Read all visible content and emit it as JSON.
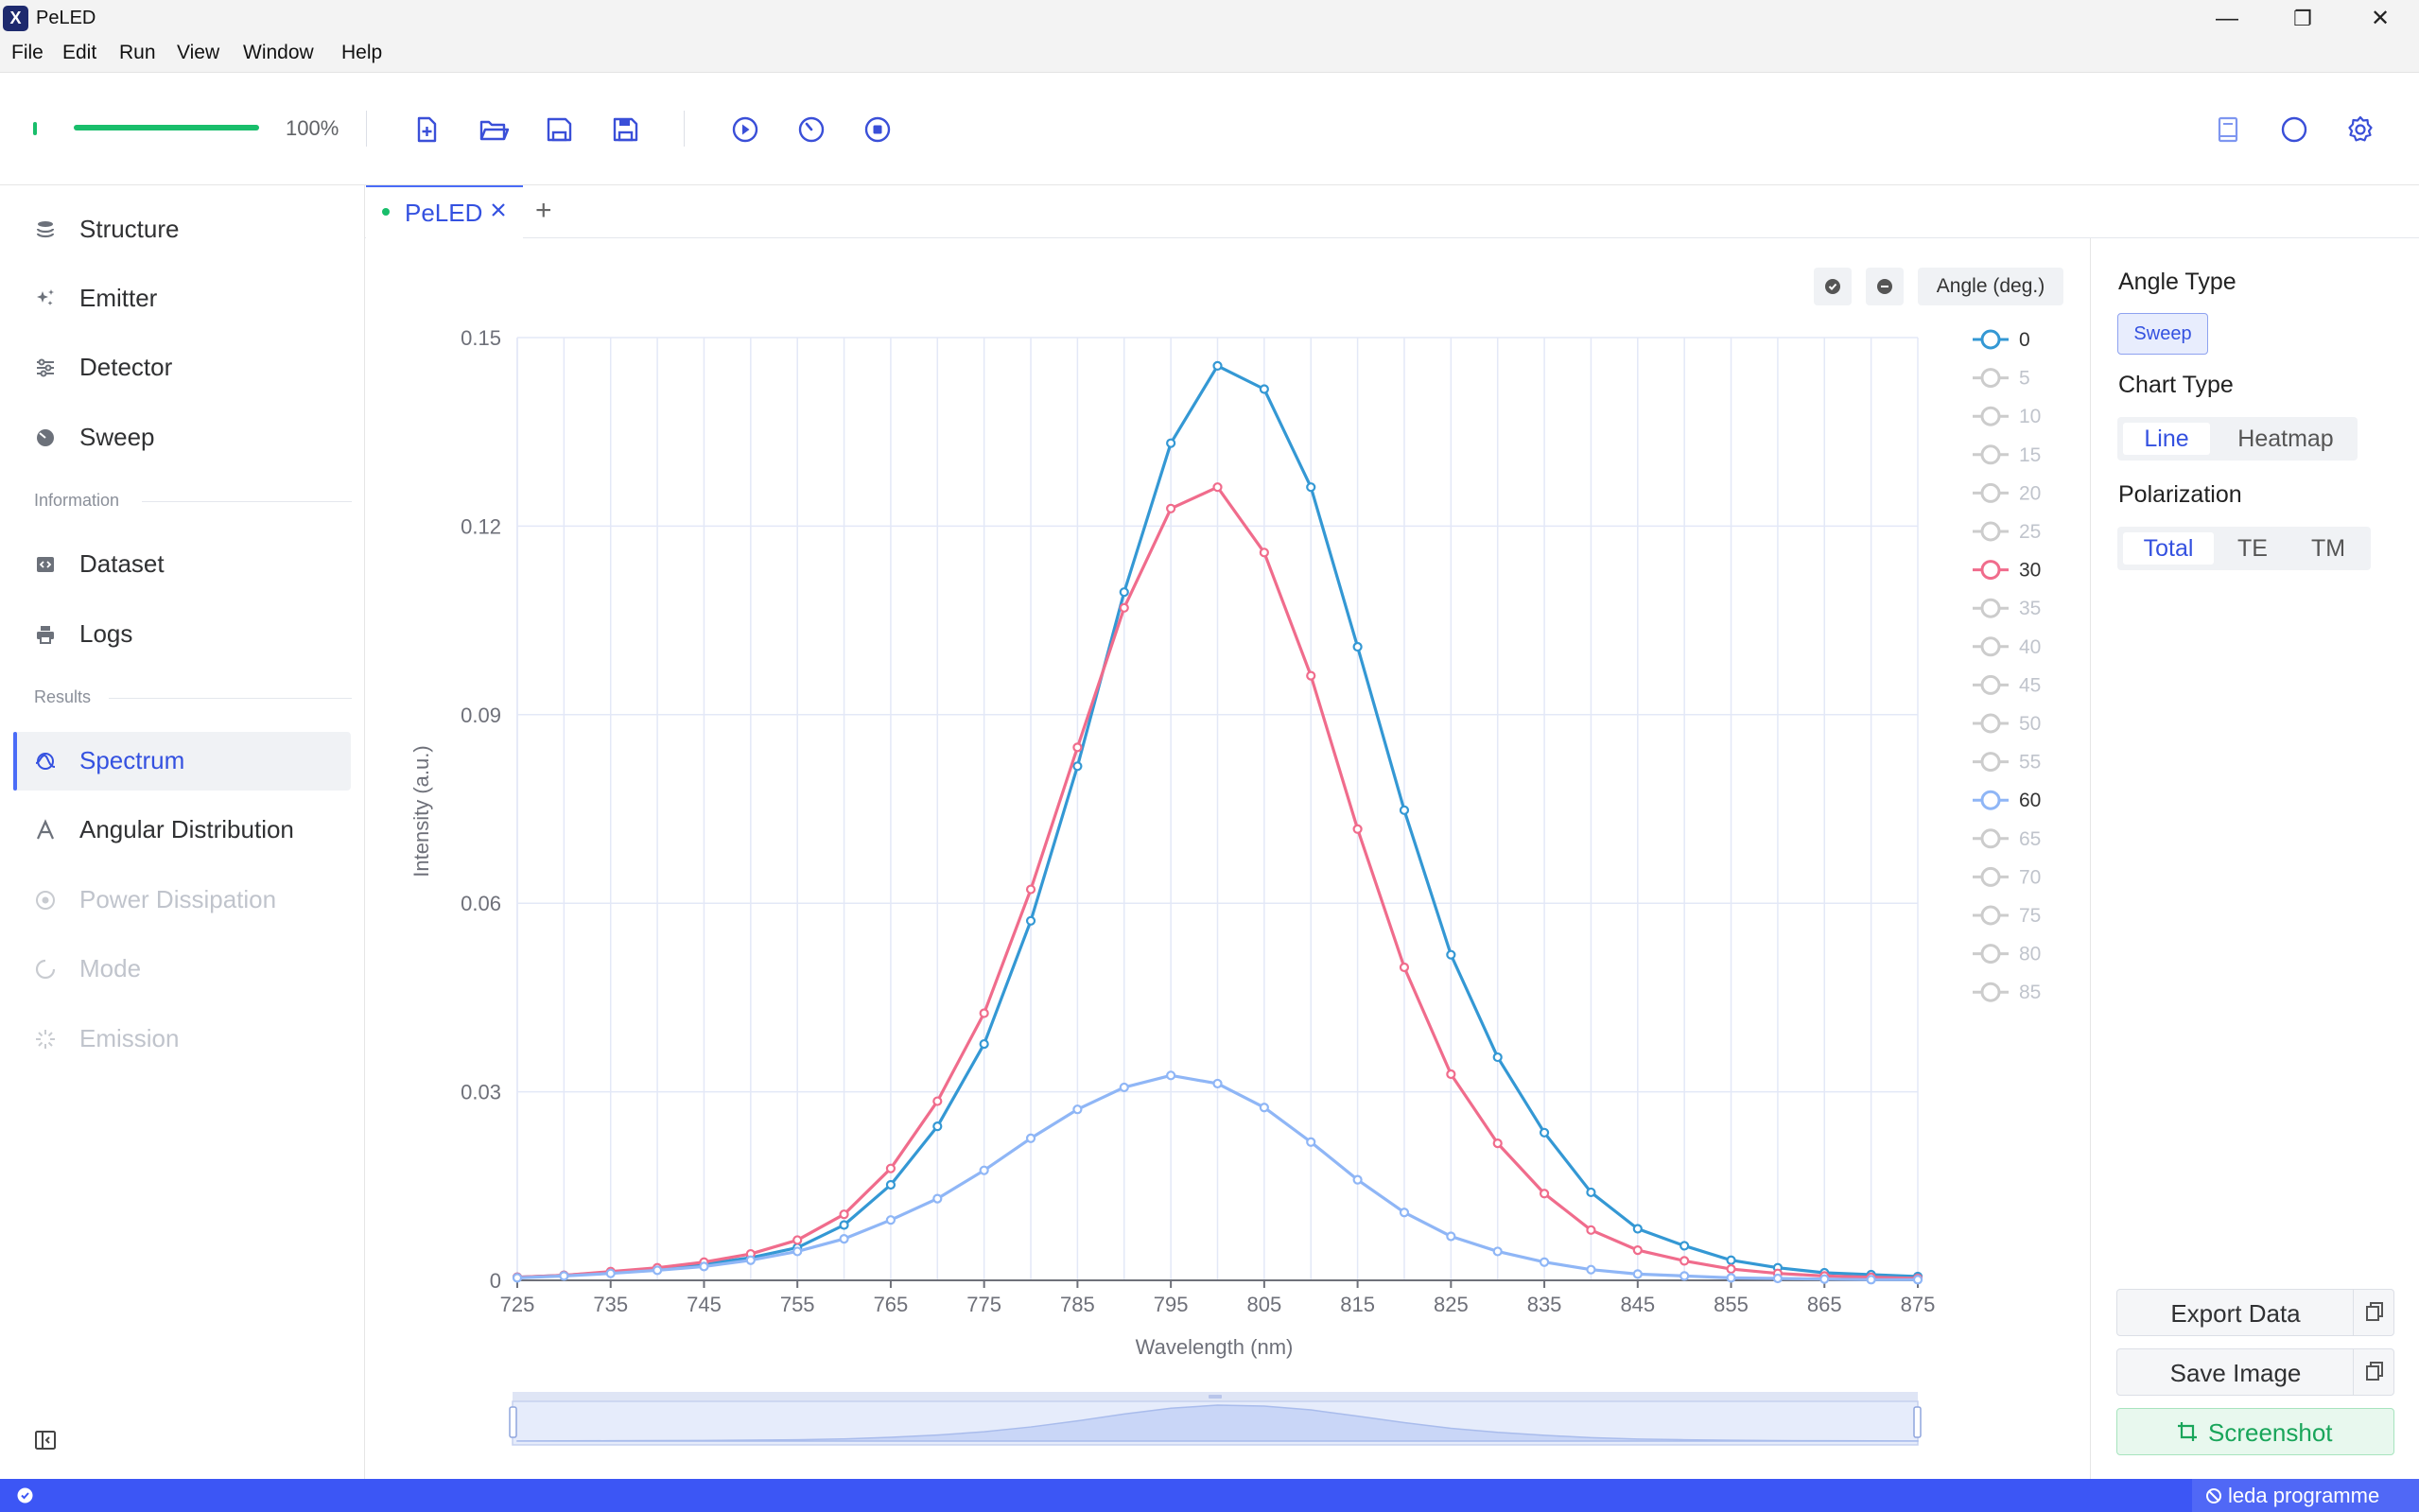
{
  "app": {
    "title": "PeLED",
    "logo_glyph": "X"
  },
  "window_controls": {
    "minimize": "—",
    "restore": "❐",
    "close": "✕"
  },
  "menu": [
    "File",
    "Edit",
    "Run",
    "View",
    "Window",
    "Help"
  ],
  "toolbar": {
    "progress_percent": 100,
    "progress_label": "100%",
    "progress_color": "#19be6b",
    "icons": [
      "new-file-icon",
      "open-folder-icon",
      "save-icon",
      "save-as-icon",
      "run-icon",
      "timer-icon",
      "stop-icon"
    ],
    "right_icons": [
      "book-icon",
      "theme-toggle-icon",
      "settings-icon"
    ]
  },
  "sidebar": {
    "items_top": [
      {
        "label": "Structure",
        "icon": "layers-icon"
      },
      {
        "label": "Emitter",
        "icon": "sparkle-icon"
      },
      {
        "label": "Detector",
        "icon": "sliders-icon"
      },
      {
        "label": "Sweep",
        "icon": "sweep-icon"
      }
    ],
    "section_information": "Information",
    "items_information": [
      {
        "label": "Dataset",
        "icon": "code-box-icon"
      },
      {
        "label": "Logs",
        "icon": "printer-icon"
      }
    ],
    "section_results": "Results",
    "items_results": [
      {
        "label": "Spectrum",
        "icon": "spectrum-icon",
        "active": true
      },
      {
        "label": "Angular Distribution",
        "icon": "angle-icon"
      },
      {
        "label": "Power Dissipation",
        "icon": "power-icon",
        "disabled": true
      },
      {
        "label": "Mode",
        "icon": "mode-icon",
        "disabled": true
      },
      {
        "label": "Emission",
        "icon": "emission-icon",
        "disabled": true
      }
    ]
  },
  "tabs": {
    "items": [
      {
        "label": "PeLED",
        "active": true
      }
    ],
    "add_label": "+"
  },
  "chart_controls": {
    "angle_button": "Angle (deg.)"
  },
  "right_panel": {
    "angle_type_title": "Angle Type",
    "angle_type_value": "Sweep",
    "chart_type_title": "Chart Type",
    "chart_types": [
      "Line",
      "Heatmap"
    ],
    "chart_type_selected": "Line",
    "polarization_title": "Polarization",
    "polarizations": [
      "Total",
      "TE",
      "TM"
    ],
    "polarization_selected": "Total",
    "export_label": "Export Data",
    "save_image_label": "Save Image",
    "screenshot_label": "Screenshot"
  },
  "statusbar": {
    "right_label": "leda programme"
  },
  "chart_data": {
    "type": "line",
    "xlabel": "Wavelength (nm)",
    "ylabel": "Intensity (a.u.)",
    "xlim": [
      725,
      875
    ],
    "ylim": [
      0,
      0.15
    ],
    "yticks": [
      0,
      0.03,
      0.06,
      0.09,
      0.12,
      0.15
    ],
    "ytick_labels": [
      "0",
      "0.03",
      "0.06",
      "0.09",
      "0.12",
      "0.15"
    ],
    "xticks": [
      725,
      735,
      745,
      755,
      765,
      775,
      785,
      795,
      805,
      815,
      825,
      835,
      845,
      855,
      865,
      875
    ],
    "x": [
      725,
      730,
      735,
      740,
      745,
      750,
      755,
      760,
      765,
      770,
      775,
      780,
      785,
      790,
      795,
      800,
      805,
      810,
      815,
      820,
      825,
      830,
      835,
      840,
      845,
      850,
      855,
      860,
      865,
      870,
      875
    ],
    "series": [
      {
        "name": "0",
        "color": "#3498d4",
        "values": [
          0.0005,
          0.0008,
          0.0013,
          0.0019,
          0.0026,
          0.0036,
          0.0052,
          0.0088,
          0.0152,
          0.0245,
          0.0376,
          0.0572,
          0.0818,
          0.1095,
          0.1332,
          0.1455,
          0.1418,
          0.1262,
          0.1008,
          0.0748,
          0.0518,
          0.0355,
          0.0235,
          0.014,
          0.0082,
          0.0055,
          0.0032,
          0.002,
          0.0012,
          0.0009,
          0.0006
        ]
      },
      {
        "name": "30",
        "color": "#f06c8c",
        "values": [
          0.0005,
          0.0008,
          0.0014,
          0.002,
          0.0029,
          0.0042,
          0.0064,
          0.0105,
          0.0178,
          0.0285,
          0.0425,
          0.0622,
          0.0848,
          0.107,
          0.1228,
          0.1262,
          0.1158,
          0.0962,
          0.0718,
          0.0498,
          0.0328,
          0.0218,
          0.0138,
          0.008,
          0.0048,
          0.0031,
          0.0018,
          0.0011,
          0.0007,
          0.0005,
          0.0003
        ]
      },
      {
        "name": "60",
        "color": "#8fb6f6",
        "values": [
          0.0004,
          0.0007,
          0.0011,
          0.0016,
          0.0022,
          0.0032,
          0.0046,
          0.0066,
          0.0096,
          0.013,
          0.0175,
          0.0226,
          0.0272,
          0.0307,
          0.0326,
          0.0313,
          0.0275,
          0.022,
          0.016,
          0.0108,
          0.007,
          0.0046,
          0.0029,
          0.0017,
          0.001,
          0.0007,
          0.0004,
          0.0003,
          0.0002,
          0.0001,
          0.0001
        ]
      }
    ],
    "legend": {
      "title": "Angle (deg.)",
      "entries": [
        "0",
        "5",
        "10",
        "15",
        "20",
        "25",
        "30",
        "35",
        "40",
        "45",
        "50",
        "55",
        "60",
        "65",
        "70",
        "75",
        "80",
        "85"
      ],
      "active": [
        "0",
        "30",
        "60"
      ],
      "inactive_color": "#cccccc",
      "placement": "right"
    },
    "grid": true,
    "datazoom": true
  }
}
